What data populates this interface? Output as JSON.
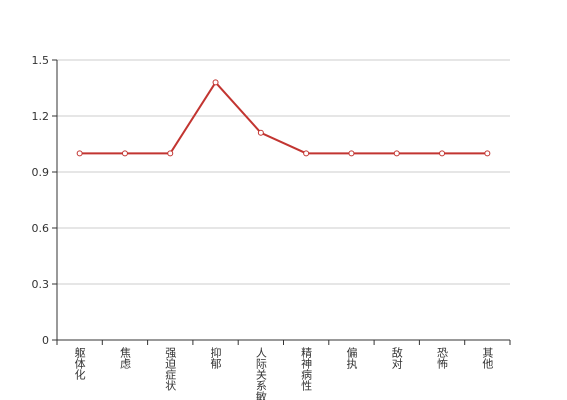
{
  "chart_data": {
    "type": "line",
    "categories": [
      "躯体化",
      "焦虑",
      "强迫症状",
      "抑郁",
      "人际关系敏感",
      "精神病性",
      "偏执",
      "敌对",
      "恐怖",
      "其他"
    ],
    "series": [
      {
        "name": "",
        "color": "#c23531",
        "values": [
          1,
          1,
          1,
          1.38,
          1.11,
          1,
          1,
          1,
          1,
          1
        ]
      }
    ],
    "ylim": [
      0,
      1.5
    ],
    "yticks": [
      0,
      0.3,
      0.6,
      0.9,
      1.2,
      1.5
    ],
    "grid": true
  }
}
